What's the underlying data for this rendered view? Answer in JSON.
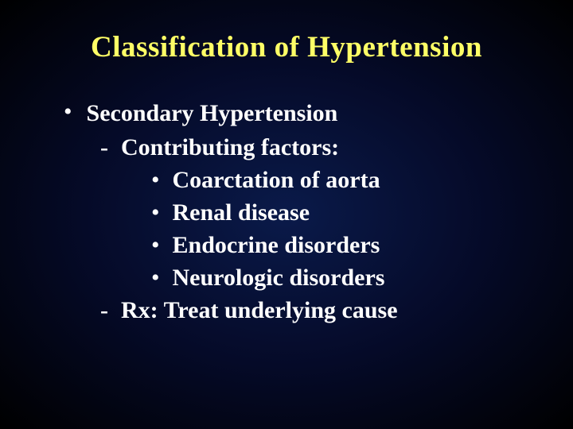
{
  "slide": {
    "title": "Classification of Hypertension",
    "background_gradient": {
      "center": "#0a1a4a",
      "mid": "#050a28",
      "edge": "#000000"
    },
    "title_color": "#ffff66",
    "text_color": "#ffffff",
    "font_family": "Times New Roman",
    "title_fontsize": 37,
    "body_fontsize": 30,
    "items": [
      {
        "bullet": "•",
        "text": "Secondary Hypertension",
        "children": [
          {
            "bullet": "-",
            "text": "Contributing factors:",
            "children": [
              {
                "bullet": "•",
                "text": "Coarctation of aorta"
              },
              {
                "bullet": "•",
                "text": "Renal disease"
              },
              {
                "bullet": "•",
                "text": "Endocrine disorders"
              },
              {
                "bullet": "•",
                "text": "Neurologic disorders"
              }
            ]
          },
          {
            "bullet": "-",
            "text": "Rx: Treat underlying cause"
          }
        ]
      }
    ]
  }
}
